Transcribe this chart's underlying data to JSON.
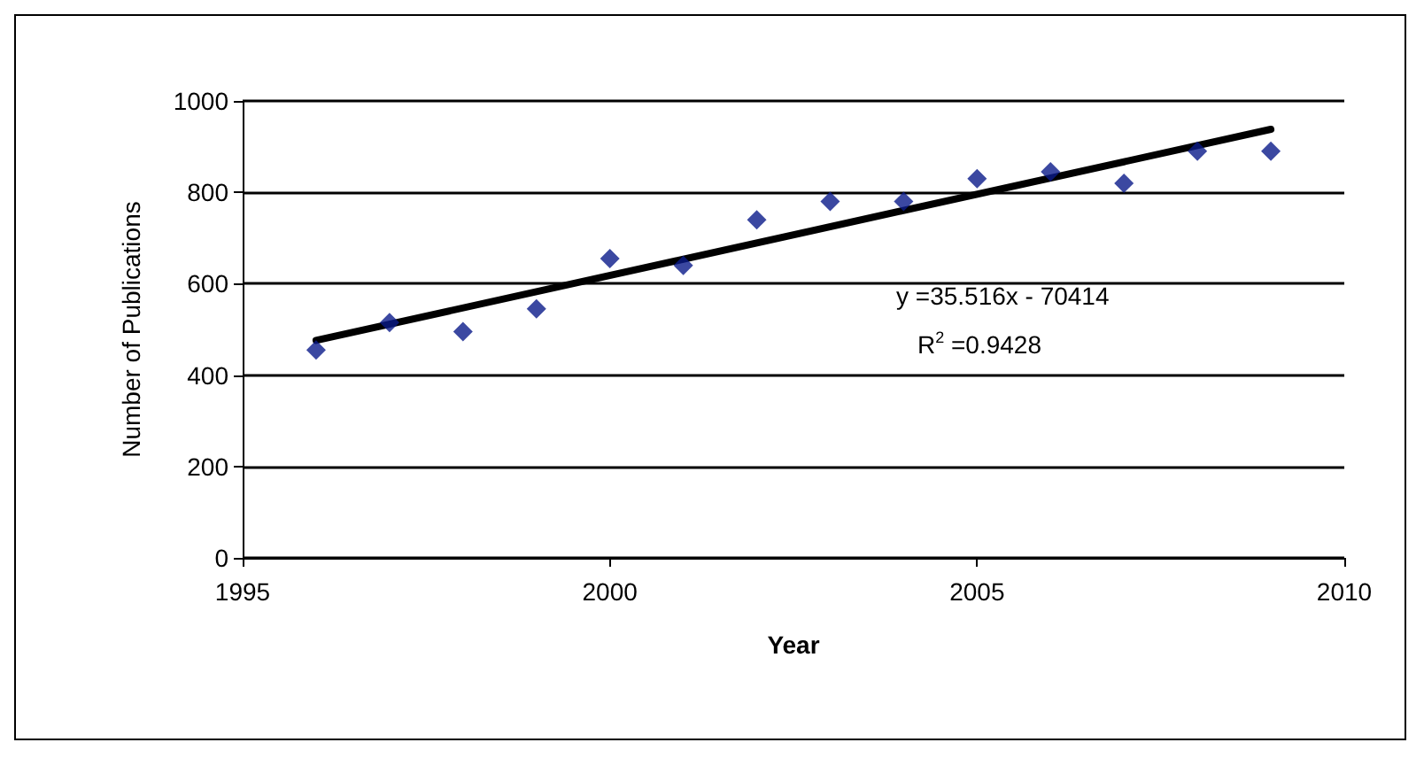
{
  "chart_data": {
    "type": "scatter",
    "xlabel": "Year",
    "ylabel": "Number of Publications",
    "x": [
      1996,
      1997,
      1998,
      1999,
      2000,
      2001,
      2002,
      2003,
      2004,
      2005,
      2006,
      2007,
      2008,
      2009
    ],
    "series": [
      {
        "color": "#0a1a8a",
        "marker": "diamond",
        "values": [
          455,
          515,
          495,
          545,
          655,
          640,
          740,
          780,
          780,
          830,
          845,
          820,
          890,
          890
        ]
      },
      {
        "type": "line",
        "color": "#000000",
        "marker": "none",
        "line_style": "solid",
        "x": [
          1996,
          2009
        ],
        "values": [
          476,
          938
        ]
      }
    ],
    "xlim": [
      1995,
      2010
    ],
    "xticks": [
      1995,
      2000,
      2005,
      2010
    ],
    "ylim": [
      0,
      1000
    ],
    "yticks": [
      0,
      200,
      400,
      600,
      800,
      1000
    ],
    "grid": "y",
    "annotations": [
      "y =35.516x - 70414",
      "R$^{2}$ =0.9428"
    ]
  }
}
